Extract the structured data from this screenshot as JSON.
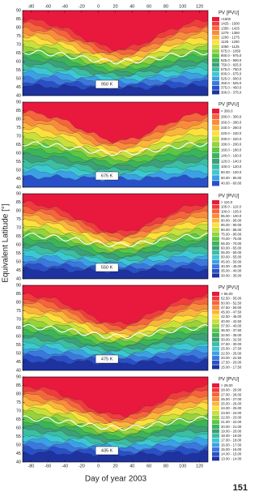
{
  "figure": {
    "ylabel": "Equivalent Latitude [°]",
    "xlabel": "Day of year 2003",
    "page_number": "151"
  },
  "chart_data": [
    {
      "type": "contour",
      "label": "950 K",
      "legend_title": "PV [PVU]",
      "xlim": [
        -90,
        130
      ],
      "xticks": [
        -80,
        -60,
        -40,
        -20,
        0,
        20,
        40,
        60,
        80,
        100,
        120
      ],
      "xaxis_position": "top",
      "ylim": [
        40,
        90
      ],
      "yticks": [
        40,
        45,
        50,
        55,
        60,
        65,
        70,
        75,
        80,
        85,
        90
      ],
      "levels": [
        ">1500",
        "1425 - 1500",
        "1350 - 1425",
        "1275 - 1350",
        "1200 - 1275",
        "1125 - 1200",
        "1050 - 1125",
        "975.0 - 1050",
        "900.0 - 975.0",
        "825.0 - 900.0",
        "750.0 - 825.0",
        "675.0 - 750.0",
        "600.0 - 675.0",
        "525.0 - 600.0",
        "450.0 - 525.0",
        "375.0 - 450.0",
        "300.0 - 375.0"
      ],
      "colors": [
        "#e8193c",
        "#f03c3c",
        "#f5643c",
        "#f98c3c",
        "#fbb43c",
        "#fde03c",
        "#c8e03c",
        "#96d23c",
        "#5ac846",
        "#3cb45a",
        "#3ca078",
        "#3cbea0",
        "#3cc8d2",
        "#3ca0e6",
        "#3c78dc",
        "#2850c8",
        "#1e32a0"
      ]
    },
    {
      "type": "contour",
      "label": "675 K",
      "legend_title": "PV [PVU]",
      "xlim": [
        -90,
        130
      ],
      "ylim": [
        40,
        90
      ],
      "yticks": [
        40,
        45,
        50,
        55,
        60,
        65,
        70,
        75,
        80,
        85,
        90
      ],
      "levels": [
        "> 300.0",
        "280.0 - 300.0",
        "260.0 - 280.0",
        "240.0 - 260.0",
        "220.0 - 240.0",
        "200.0 - 220.0",
        "180.0 - 200.0",
        "160.0 - 180.0",
        "140.0 - 160.0",
        "120.0 - 140.0",
        "100.0 - 120.0",
        "80.00 - 100.0",
        "60.00 - 80.00",
        "40.00 - 60.00"
      ],
      "colors": [
        "#e8193c",
        "#f5643c",
        "#f98c3c",
        "#fbb43c",
        "#fde03c",
        "#c8e03c",
        "#96d23c",
        "#5ac846",
        "#3cb45a",
        "#3ca078",
        "#3cbea0",
        "#3cc8d2",
        "#3ca0e6",
        "#2850c8"
      ]
    },
    {
      "type": "contour",
      "label": "550 K",
      "legend_title": "PV [PVU]",
      "xlim": [
        -90,
        130
      ],
      "ylim": [
        40,
        90
      ],
      "yticks": [
        40,
        45,
        50,
        55,
        60,
        65,
        70,
        75,
        80,
        85,
        90
      ],
      "levels": [
        "> 110.0",
        "105.0 - 110.0",
        "100.0 - 105.0",
        "95.00 - 100.0",
        "90.00 - 95.00",
        "85.00 - 90.00",
        "80.00 - 85.00",
        "75.00 - 80.00",
        "70.00 - 75.00",
        "65.00 - 70.00",
        "60.00 - 65.00",
        "55.00 - 60.00",
        "50.00 - 55.00",
        "45.00 - 50.00",
        "40.00 - 45.00",
        "35.00 - 40.00",
        "30.00 - 35.00"
      ],
      "colors": [
        "#e8193c",
        "#f03c3c",
        "#f5643c",
        "#f98c3c",
        "#fbb43c",
        "#fde03c",
        "#c8e03c",
        "#96d23c",
        "#5ac846",
        "#3cb45a",
        "#3ca078",
        "#3cbea0",
        "#3cc8d2",
        "#3ca0e6",
        "#3c78dc",
        "#2850c8",
        "#1e32a0"
      ]
    },
    {
      "type": "contour",
      "label": "475 K",
      "legend_title": "PV [PVU]",
      "xlim": [
        -90,
        130
      ],
      "ylim": [
        40,
        90
      ],
      "yticks": [
        40,
        45,
        50,
        55,
        60,
        65,
        70,
        75,
        80,
        85,
        90
      ],
      "levels": [
        "> 55.00",
        "52.50 - 55.00",
        "50.00 - 52.50",
        "47.50 - 50.00",
        "45.00 - 47.50",
        "42.50 - 45.00",
        "40.00 - 42.50",
        "37.50 - 40.00",
        "35.00 - 37.50",
        "32.50 - 35.00",
        "30.00 - 32.50",
        "27.50 - 30.00",
        "25.00 - 27.50",
        "22.50 - 25.00",
        "20.00 - 22.50",
        "17.50 - 20.00",
        "15.00 - 17.50"
      ],
      "colors": [
        "#e8193c",
        "#f03c3c",
        "#f5643c",
        "#f98c3c",
        "#fbb43c",
        "#fde03c",
        "#c8e03c",
        "#96d23c",
        "#5ac846",
        "#3cb45a",
        "#3ca078",
        "#3cbea0",
        "#3cc8d2",
        "#3ca0e6",
        "#3c78dc",
        "#2850c8",
        "#1e32a0"
      ]
    },
    {
      "type": "contour",
      "label": "435 K",
      "legend_title": "PV [PVU]",
      "xlim": [
        -90,
        130
      ],
      "xticks": [
        -80,
        -60,
        -40,
        -20,
        0,
        20,
        40,
        60,
        80,
        100,
        120
      ],
      "xaxis_position": "bottom",
      "ylim": [
        40,
        90
      ],
      "yticks": [
        40,
        45,
        50,
        55,
        60,
        65,
        70,
        75,
        80,
        85,
        90
      ],
      "levels": [
        "> 29.00",
        "28.00 - 29.00",
        "27.00 - 28.00",
        "26.00 - 27.00",
        "25.00 - 26.00",
        "24.00 - 25.00",
        "23.00 - 24.00",
        "22.00 - 23.00",
        "21.00 - 22.00",
        "20.00 - 21.00",
        "19.00 - 20.00",
        "18.00 - 19.00",
        "17.00 - 18.00",
        "16.00 - 17.00",
        "15.00 - 16.00",
        "14.00 - 15.00",
        "13.00 - 14.00"
      ],
      "colors": [
        "#e8193c",
        "#f03c3c",
        "#f5643c",
        "#f98c3c",
        "#fbb43c",
        "#fde03c",
        "#c8e03c",
        "#96d23c",
        "#5ac846",
        "#3cb45a",
        "#3ca078",
        "#3cbea0",
        "#3cc8d2",
        "#3ca0e6",
        "#3c78dc",
        "#2850c8",
        "#1e32a0"
      ]
    }
  ]
}
